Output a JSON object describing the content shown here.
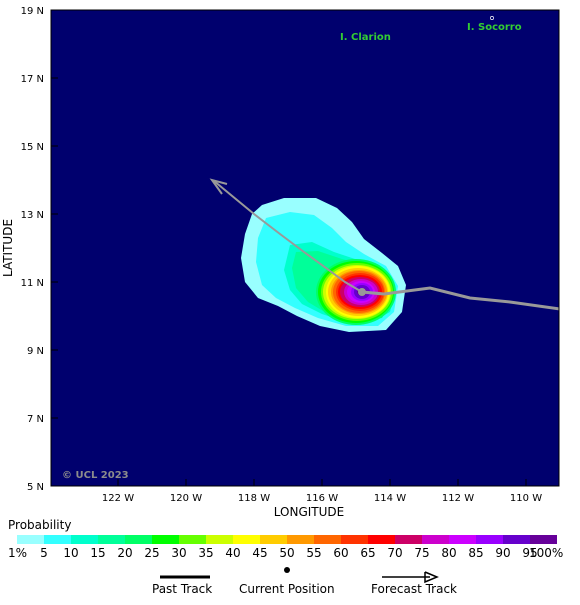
{
  "map": {
    "axes": {
      "x_title": "LONGITUDE",
      "y_title": "LATITUDE",
      "lon_ticks": [
        "122 W",
        "120 W",
        "118 W",
        "116 W",
        "114 W",
        "112 W",
        "110 W"
      ],
      "lat_ticks": [
        "19 N",
        "17 N",
        "15 N",
        "13 N",
        "11 N",
        "9 N",
        "7 N",
        "5 N"
      ],
      "lon_range": [
        "124 W",
        "109 W"
      ],
      "lat_range": [
        "5 N",
        "19 N"
      ]
    },
    "ocean_color": "#00006e",
    "islands": [
      {
        "name": "I. Clarion"
      },
      {
        "name": "I. Socorro"
      }
    ],
    "copyright": "© UCL 2023",
    "current_position": {
      "lon": "114.9 W",
      "lat": "10.7 N"
    }
  },
  "legend": {
    "title": "Probability",
    "labels": [
      "1%",
      "5",
      "10",
      "15",
      "20",
      "25",
      "30",
      "35",
      "40",
      "45",
      "50",
      "55",
      "60",
      "65",
      "70",
      "75",
      "80",
      "85",
      "90",
      "95",
      "100%"
    ],
    "colors": [
      "#99ffff",
      "#33ffff",
      "#00ffcc",
      "#00ff99",
      "#00ff66",
      "#00ff00",
      "#66ff00",
      "#ccff00",
      "#ffff00",
      "#ffcc00",
      "#ff9900",
      "#ff6600",
      "#ff3300",
      "#ff0000",
      "#cc0066",
      "#cc00cc",
      "#cc00ff",
      "#9900ff",
      "#6600cc",
      "#660099"
    ],
    "key": {
      "past_track": "Past Track",
      "current_position": "Current Position",
      "forecast_track": "Forecast Track"
    }
  }
}
